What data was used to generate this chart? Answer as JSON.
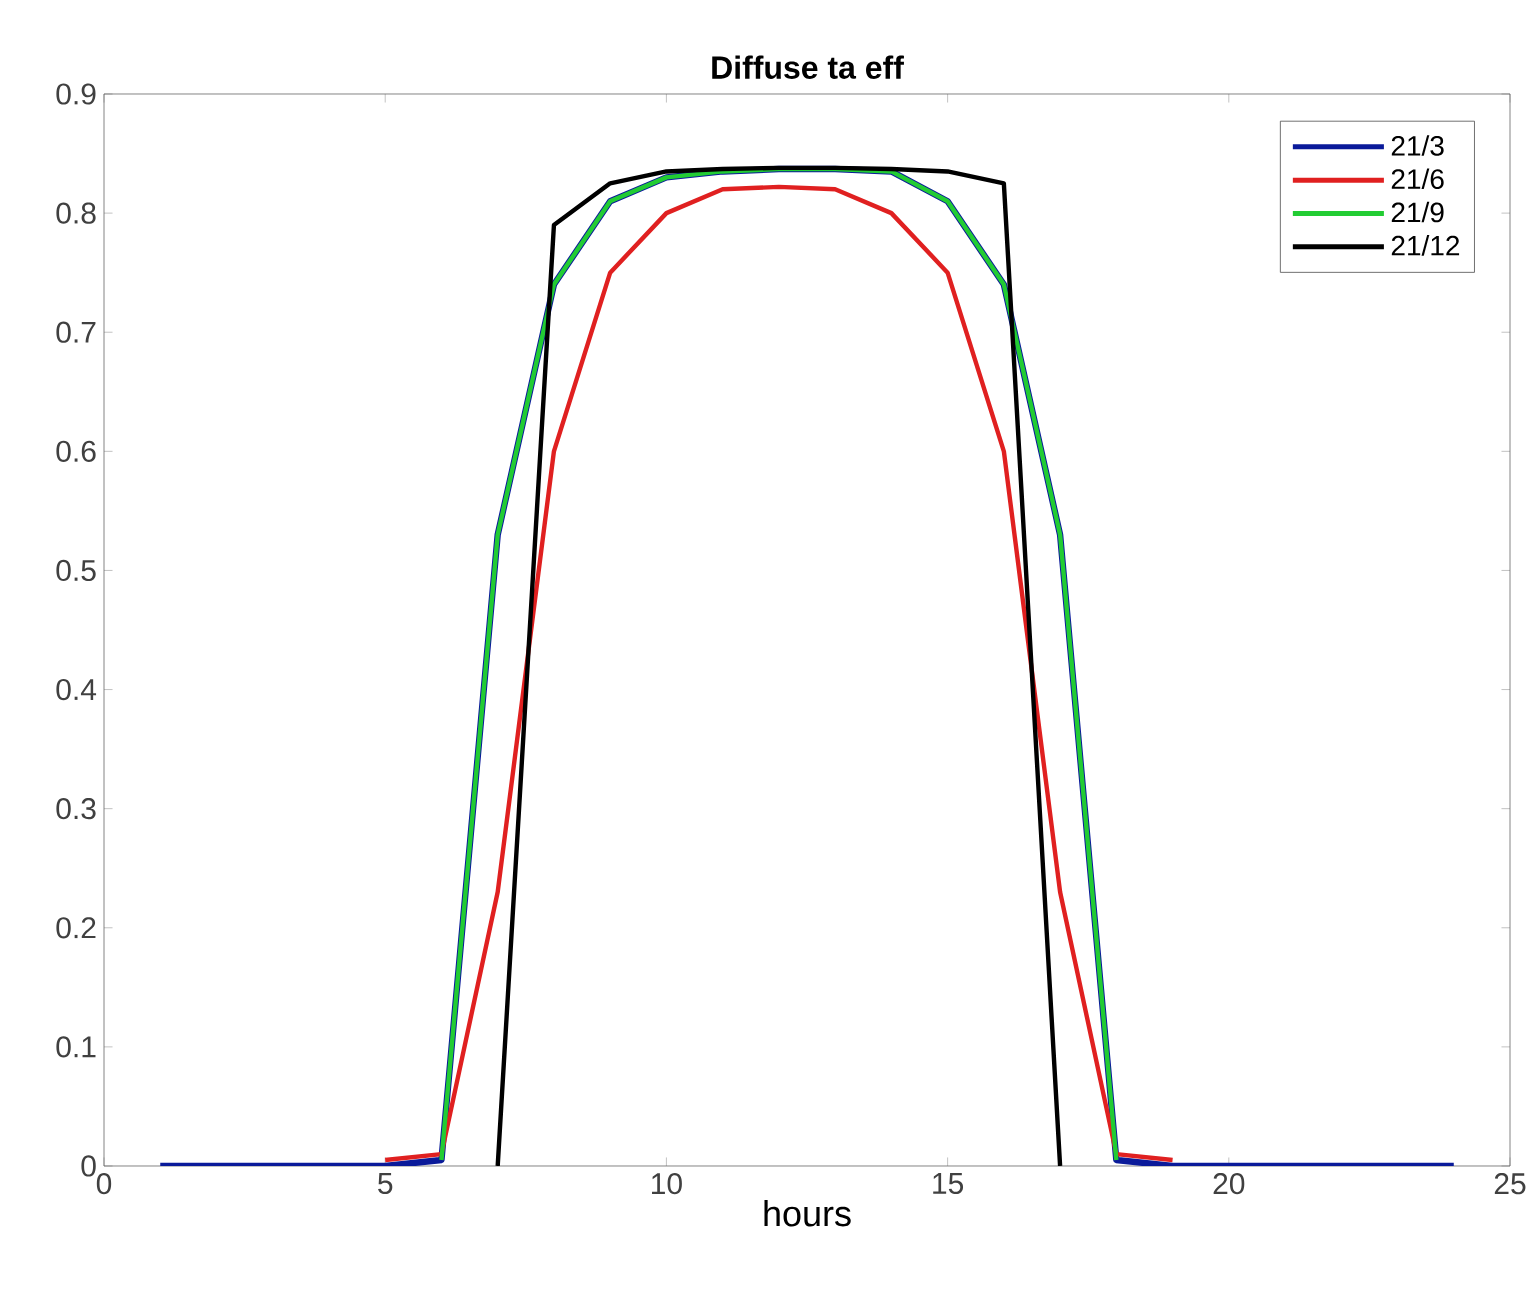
{
  "chart_data": {
    "type": "line",
    "title": "Diffuse  ta eff",
    "xlabel": "hours",
    "x": [
      1,
      2,
      3,
      4,
      5,
      6,
      7,
      8,
      9,
      10,
      11,
      12,
      13,
      14,
      15,
      16,
      17,
      18,
      19,
      20,
      21,
      22,
      23,
      24
    ],
    "series": [
      {
        "name": "21/3",
        "color": "#0a1a9a",
        "values": [
          0,
          0,
          0,
          0,
          0,
          0.005,
          0.53,
          0.74,
          0.81,
          0.83,
          0.835,
          0.837,
          0.837,
          0.835,
          0.81,
          0.74,
          0.53,
          0.005,
          0,
          0,
          0,
          0,
          0,
          0
        ]
      },
      {
        "name": "21/6",
        "color": "#e02020",
        "values": [
          null,
          null,
          null,
          null,
          0.005,
          0.01,
          0.23,
          0.6,
          0.75,
          0.8,
          0.82,
          0.822,
          0.82,
          0.8,
          0.75,
          0.6,
          0.23,
          0.01,
          0.005,
          null,
          null,
          null,
          null,
          null
        ]
      },
      {
        "name": "21/9",
        "color": "#22cc33",
        "values": [
          null,
          null,
          null,
          null,
          null,
          0.005,
          0.53,
          0.74,
          0.81,
          0.83,
          0.835,
          0.837,
          0.837,
          0.835,
          0.81,
          0.74,
          0.53,
          0.005,
          null,
          null,
          null,
          null,
          null,
          null
        ]
      },
      {
        "name": "21/12",
        "color": "#000000",
        "values": [
          null,
          null,
          null,
          null,
          null,
          null,
          0,
          0.79,
          0.825,
          0.835,
          0.837,
          0.838,
          0.838,
          0.837,
          0.835,
          0.825,
          0,
          null,
          null,
          null,
          null,
          null,
          null,
          null
        ]
      }
    ],
    "xlim": [
      0,
      25
    ],
    "xticks": [
      0,
      5,
      10,
      15,
      20,
      25
    ],
    "ylim": [
      0,
      0.9
    ],
    "yticks": [
      0,
      0.1,
      0.2,
      0.3,
      0.4,
      0.5,
      0.6,
      0.7,
      0.8,
      0.9
    ],
    "grid": false,
    "legend": "top right",
    "marker": "none",
    "line_style": "solid"
  }
}
